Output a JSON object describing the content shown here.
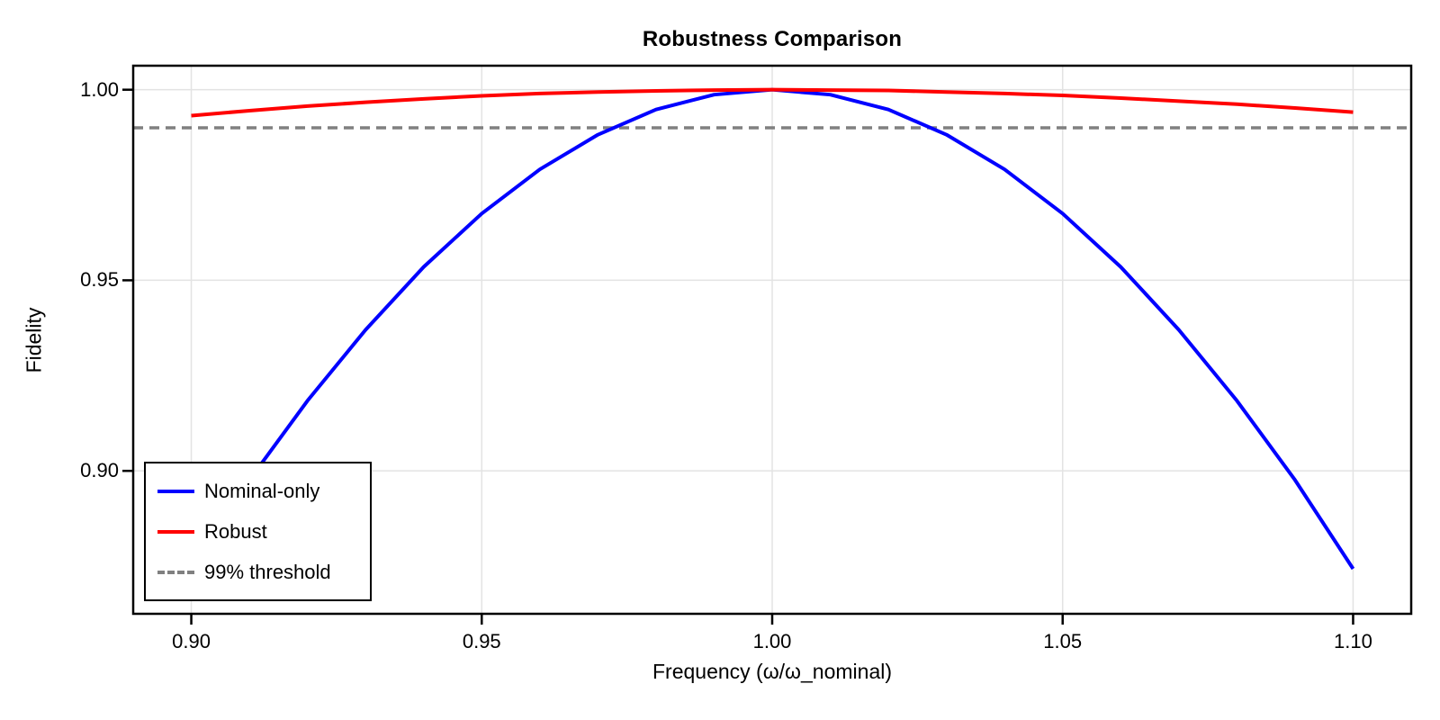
{
  "title": "Robustness Comparison",
  "x_axis": {
    "label": "Frequency (ω/ω_nominal)",
    "tick_labels": [
      "0.90",
      "0.95",
      "1.00",
      "1.05",
      "1.10"
    ],
    "tick_values": [
      0.9,
      0.95,
      1.0,
      1.05,
      1.1
    ]
  },
  "y_axis": {
    "label": "Fidelity",
    "tick_labels": [
      "1.00",
      "0.95",
      "0.90"
    ],
    "tick_values": [
      1.0,
      0.95,
      0.9
    ]
  },
  "legend": {
    "items": [
      {
        "label": "Nominal-only",
        "color": "#0000ff",
        "style": "solid"
      },
      {
        "label": "Robust",
        "color": "#ff0000",
        "style": "solid"
      },
      {
        "label": "99% threshold",
        "color": "#808080",
        "style": "dashed"
      }
    ]
  },
  "colors": {
    "nominal_line": "#0000ff",
    "robust_line": "#ff0000",
    "threshold_line": "#808080",
    "gridline": "#e3e3e3",
    "frame": "#000000",
    "background": "#ffffff"
  },
  "chart_data": {
    "type": "line",
    "title": "Robustness Comparison",
    "xlabel": "Frequency (ω/ω_nominal)",
    "ylabel": "Fidelity",
    "xlim": [
      0.89,
      1.11
    ],
    "ylim": [
      0.8625,
      1.0063
    ],
    "grid": true,
    "legend_position": "lower left",
    "x": [
      0.9,
      0.91,
      0.92,
      0.93,
      0.94,
      0.95,
      0.96,
      0.97,
      0.98,
      0.99,
      1.0,
      1.01,
      1.02,
      1.03,
      1.04,
      1.05,
      1.06,
      1.07,
      1.08,
      1.09,
      1.1
    ],
    "series": [
      {
        "name": "Nominal-only",
        "color": "#0000ff",
        "line_style": "solid",
        "values": [
          0.8743,
          0.8976,
          0.9184,
          0.937,
          0.9535,
          0.9675,
          0.9791,
          0.9882,
          0.9948,
          0.9987,
          1.0,
          0.9987,
          0.9948,
          0.9882,
          0.9791,
          0.9675,
          0.9535,
          0.937,
          0.9184,
          0.8976,
          0.8743
        ]
      },
      {
        "name": "Robust",
        "color": "#ff0000",
        "line_style": "solid",
        "values": [
          0.9932,
          0.9945,
          0.9957,
          0.9967,
          0.9976,
          0.9984,
          0.999,
          0.9994,
          0.9997,
          0.9999,
          1.0,
          0.9999,
          0.9998,
          0.9994,
          0.999,
          0.9985,
          0.9978,
          0.997,
          0.9962,
          0.9952,
          0.9941
        ]
      }
    ],
    "threshold": {
      "name": "99% threshold",
      "value": 0.99,
      "color": "#808080",
      "line_style": "dashed"
    }
  }
}
